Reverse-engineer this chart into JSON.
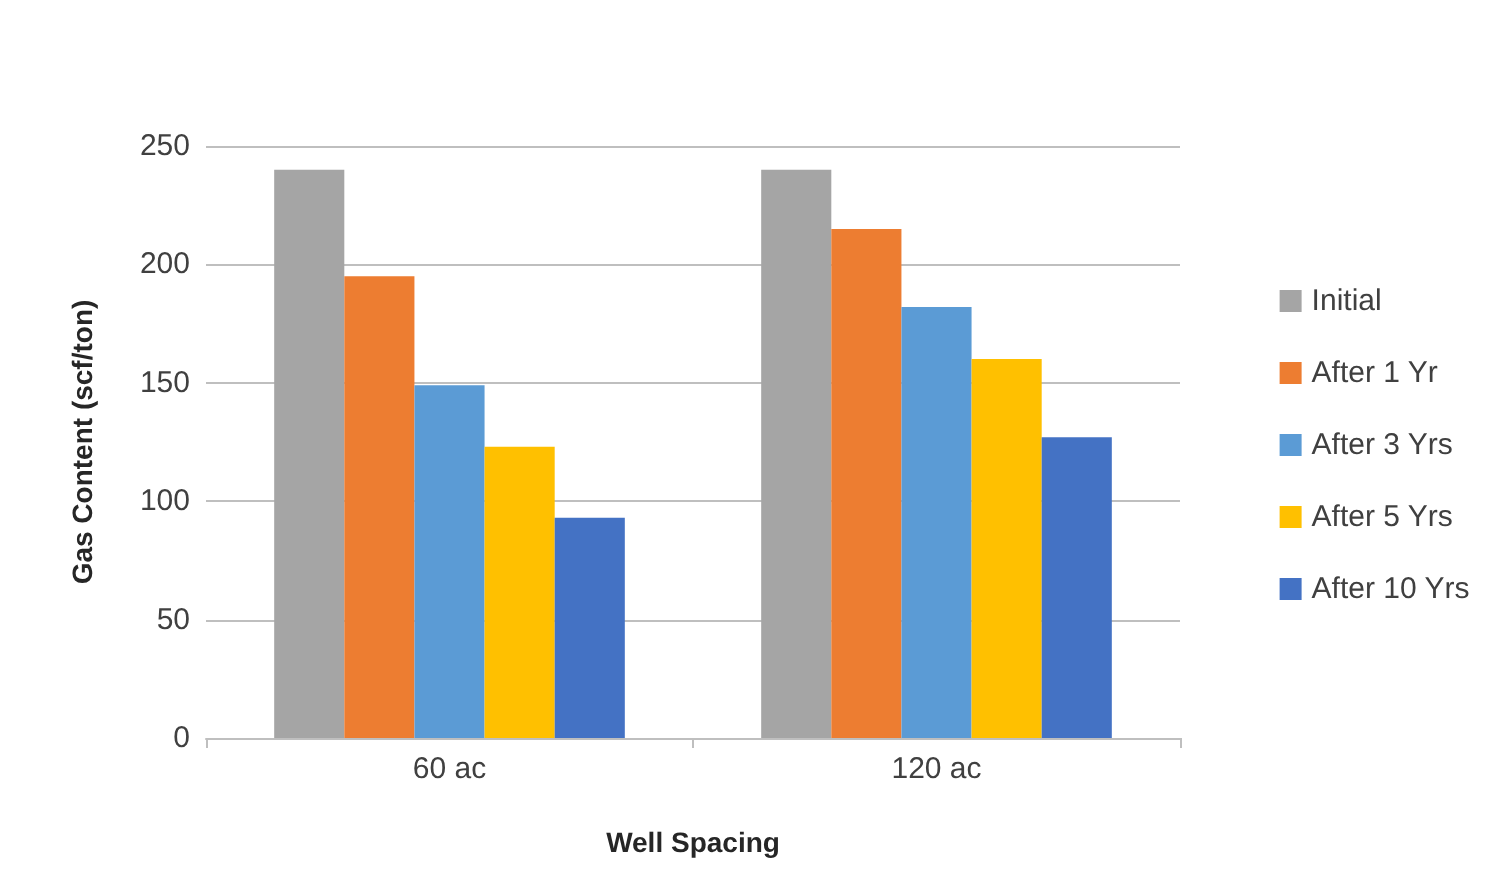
{
  "chart_data": {
    "type": "bar",
    "xlabel": "Well Spacing",
    "ylabel": "Gas Content (scf/ton)",
    "categories": [
      "60 ac",
      "120 ac"
    ],
    "series": [
      {
        "name": "Initial",
        "color": "#a5a5a5",
        "values": [
          240,
          240
        ]
      },
      {
        "name": "After 1 Yr",
        "color": "#ed7d31",
        "values": [
          195,
          215
        ]
      },
      {
        "name": "After 3 Yrs",
        "color": "#5b9bd5",
        "values": [
          149,
          182
        ]
      },
      {
        "name": "After 5 Yrs",
        "color": "#ffc000",
        "values": [
          123,
          160
        ]
      },
      {
        "name": "After 10 Yrs",
        "color": "#4472c4",
        "values": [
          93,
          127
        ]
      }
    ],
    "ylim": [
      0,
      250
    ],
    "yticks": [
      0,
      50,
      100,
      150,
      200,
      250
    ],
    "grid": "y",
    "legend": "right"
  }
}
